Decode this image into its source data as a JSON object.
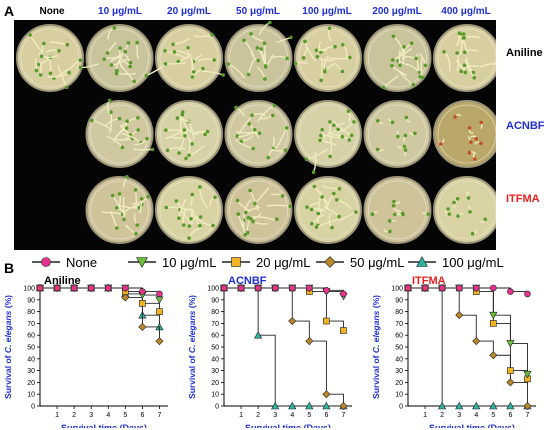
{
  "figure": {
    "panel_a_letter": "A",
    "panel_b_letter": "B",
    "concentrations": [
      "None",
      "10 μg/mL",
      "20 μg/mL",
      "50 μg/mL",
      "100 μg/mL",
      "200 μg/mL",
      "400 μg/mL"
    ],
    "rows": [
      {
        "label": "Aniline",
        "color": "#000000"
      },
      {
        "label": "ACNBF",
        "color": "#1f2fd6"
      },
      {
        "label": "ITFMA",
        "color": "#e8201e"
      }
    ]
  },
  "chart_data": [
    {
      "type": "line",
      "subtype": "survival step plot",
      "title": "Aniline",
      "title_color": "#000000",
      "ylabel_parts": [
        "Survival of ",
        "C. elegans",
        " (%)"
      ],
      "xlabel": "Survival time (Days)",
      "xlim": [
        0,
        7.5
      ],
      "ylim": [
        0,
        100
      ],
      "x_ticks": [
        1,
        2,
        3,
        4,
        5,
        6,
        7
      ],
      "y_ticks": [
        0,
        10,
        20,
        30,
        40,
        50,
        60,
        70,
        80,
        90,
        100
      ],
      "legend": [
        {
          "name": "None",
          "marker": "circle",
          "color": "#e8338c"
        },
        {
          "name": "10 μg/mL",
          "marker": "triangle-down",
          "color": "#6bbf3a"
        },
        {
          "name": "20 μg/mL",
          "marker": "square",
          "color": "#f0b323"
        },
        {
          "name": "50 μg/mL",
          "marker": "diamond",
          "color": "#b8862b"
        },
        {
          "name": "100 μg/mL",
          "marker": "triangle-up",
          "color": "#2bb3a0"
        }
      ],
      "series": [
        {
          "name": "100 μg/mL",
          "marker": "triangle-up",
          "color": "#2bb3a0",
          "x": [
            0,
            1,
            2,
            3,
            4,
            5,
            6,
            7
          ],
          "y": [
            100,
            100,
            100,
            100,
            100,
            95,
            77,
            67
          ]
        },
        {
          "name": "50 μg/mL",
          "marker": "diamond",
          "color": "#b8862b",
          "x": [
            0,
            1,
            2,
            3,
            4,
            5,
            6,
            7
          ],
          "y": [
            100,
            100,
            100,
            100,
            100,
            92,
            67,
            55
          ]
        },
        {
          "name": "20 μg/mL",
          "marker": "square",
          "color": "#f0b323",
          "x": [
            0,
            1,
            2,
            3,
            4,
            5,
            6,
            7
          ],
          "y": [
            100,
            100,
            100,
            100,
            100,
            97,
            87,
            80
          ]
        },
        {
          "name": "10 μg/mL",
          "marker": "triangle-down",
          "color": "#6bbf3a",
          "x": [
            0,
            1,
            2,
            3,
            4,
            5,
            6,
            7
          ],
          "y": [
            100,
            100,
            100,
            100,
            100,
            100,
            94,
            90
          ]
        },
        {
          "name": "None",
          "marker": "circle",
          "color": "#e8338c",
          "x": [
            0,
            1,
            2,
            3,
            4,
            5,
            6,
            7
          ],
          "y": [
            100,
            100,
            100,
            100,
            100,
            100,
            97,
            95
          ]
        }
      ]
    },
    {
      "type": "line",
      "subtype": "survival step plot",
      "title": "ACNBF",
      "title_color": "#1f2fd6",
      "ylabel_parts": [
        "Survival of ",
        "C. elegans",
        " (%)"
      ],
      "xlabel": "Survival time (Days)",
      "xlim": [
        0,
        7.5
      ],
      "ylim": [
        0,
        100
      ],
      "x_ticks": [
        1,
        2,
        3,
        4,
        5,
        6,
        7
      ],
      "y_ticks": [
        0,
        10,
        20,
        30,
        40,
        50,
        60,
        70,
        80,
        90,
        100
      ],
      "series": [
        {
          "name": "100 μg/mL",
          "marker": "triangle-up",
          "color": "#2bb3a0",
          "x": [
            0,
            1,
            2,
            3,
            4,
            5,
            6,
            7
          ],
          "y": [
            100,
            100,
            60,
            0,
            0,
            0,
            0,
            0
          ]
        },
        {
          "name": "50 μg/mL",
          "marker": "diamond",
          "color": "#b8862b",
          "x": [
            0,
            1,
            2,
            3,
            4,
            5,
            6,
            7
          ],
          "y": [
            100,
            100,
            100,
            100,
            72,
            55,
            10,
            0
          ]
        },
        {
          "name": "20 μg/mL",
          "marker": "square",
          "color": "#f0b323",
          "x": [
            0,
            1,
            2,
            3,
            4,
            5,
            6,
            7
          ],
          "y": [
            100,
            100,
            100,
            100,
            100,
            97,
            72,
            64
          ]
        },
        {
          "name": "10 μg/mL",
          "marker": "triangle-down",
          "color": "#6bbf3a",
          "x": [
            0,
            1,
            2,
            3,
            4,
            5,
            6,
            7
          ],
          "y": [
            100,
            100,
            100,
            100,
            100,
            100,
            97,
            93
          ]
        },
        {
          "name": "None",
          "marker": "circle",
          "color": "#e8338c",
          "x": [
            0,
            1,
            2,
            3,
            4,
            5,
            6,
            7
          ],
          "y": [
            100,
            100,
            100,
            100,
            100,
            100,
            98,
            95
          ]
        }
      ]
    },
    {
      "type": "line",
      "subtype": "survival step plot",
      "title": "ITFMA",
      "title_color": "#e8201e",
      "ylabel_parts": [
        "Survival of ",
        "C. elegans",
        " (%)"
      ],
      "xlabel": "Survival time (Days)",
      "xlim": [
        0,
        7.5
      ],
      "ylim": [
        0,
        100
      ],
      "x_ticks": [
        1,
        2,
        3,
        4,
        5,
        6,
        7
      ],
      "y_ticks": [
        0,
        10,
        20,
        30,
        40,
        50,
        60,
        70,
        80,
        90,
        100
      ],
      "series": [
        {
          "name": "100 μg/mL",
          "marker": "triangle-up",
          "color": "#2bb3a0",
          "x": [
            0,
            1,
            2,
            3,
            4,
            5,
            6,
            7
          ],
          "y": [
            100,
            100,
            0,
            0,
            0,
            0,
            0,
            0
          ]
        },
        {
          "name": "50 μg/mL",
          "marker": "diamond",
          "color": "#b8862b",
          "x": [
            0,
            1,
            2,
            3,
            4,
            5,
            6,
            7
          ],
          "y": [
            100,
            100,
            100,
            77,
            55,
            43,
            20,
            0
          ]
        },
        {
          "name": "20 μg/mL",
          "marker": "square",
          "color": "#f0b323",
          "x": [
            0,
            1,
            2,
            3,
            4,
            5,
            6,
            7
          ],
          "y": [
            100,
            100,
            100,
            100,
            97,
            70,
            30,
            23
          ]
        },
        {
          "name": "10 μg/mL",
          "marker": "triangle-down",
          "color": "#6bbf3a",
          "x": [
            0,
            1,
            2,
            3,
            4,
            5,
            6,
            7
          ],
          "y": [
            100,
            100,
            100,
            100,
            100,
            77,
            53,
            27
          ]
        },
        {
          "name": "None",
          "marker": "circle",
          "color": "#e8338c",
          "x": [
            0,
            1,
            2,
            3,
            4,
            5,
            6,
            7
          ],
          "y": [
            100,
            100,
            100,
            100,
            100,
            100,
            97,
            95
          ]
        }
      ]
    }
  ]
}
